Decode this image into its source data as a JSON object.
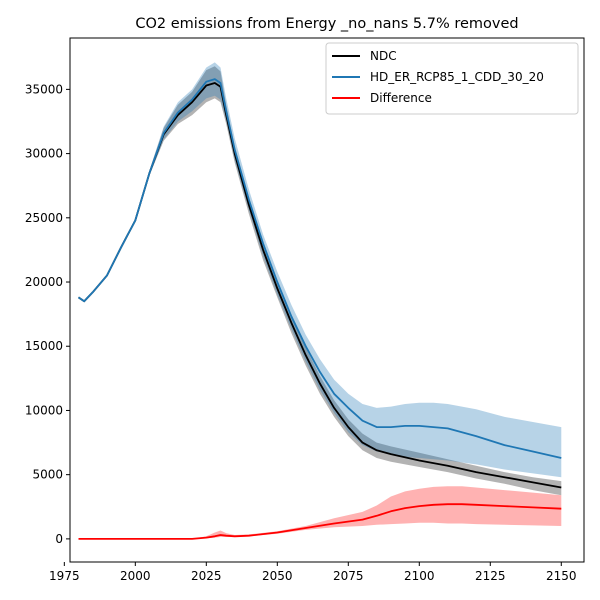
{
  "chart_data": {
    "type": "line",
    "title": "CO2 emissions from Energy _no_nans 5.7% removed",
    "xlabel": "",
    "ylabel": "",
    "xlim": [
      1977,
      2158
    ],
    "ylim": [
      -1800,
      39000
    ],
    "xticks": [
      1975,
      2000,
      2025,
      2050,
      2075,
      2100,
      2125,
      2150
    ],
    "yticks": [
      0,
      5000,
      10000,
      15000,
      20000,
      25000,
      30000,
      35000
    ],
    "legend_position": "top-right",
    "series": [
      {
        "name": "NDC",
        "color": "#000000",
        "band_color": "#808080",
        "band_opacity": 0.6,
        "x": [
          1980,
          1982,
          1985,
          1990,
          1995,
          2000,
          2005,
          2010,
          2015,
          2020,
          2025,
          2028,
          2030,
          2032,
          2035,
          2040,
          2045,
          2050,
          2055,
          2060,
          2065,
          2070,
          2075,
          2080,
          2085,
          2090,
          2100,
          2110,
          2120,
          2130,
          2140,
          2150
        ],
        "values": [
          18800,
          18500,
          19200,
          20500,
          22700,
          24800,
          28500,
          31500,
          33000,
          34000,
          35300,
          35500,
          35200,
          33000,
          30000,
          26000,
          22500,
          19500,
          16800,
          14300,
          12100,
          10200,
          8700,
          7500,
          6900,
          6600,
          6100,
          5700,
          5200,
          4800,
          4400,
          4000
        ],
        "lower": [
          18800,
          18500,
          19200,
          20500,
          22700,
          24800,
          28300,
          31000,
          32300,
          33000,
          34000,
          34300,
          34000,
          32300,
          29300,
          25300,
          21700,
          18800,
          16000,
          13500,
          11300,
          9500,
          8000,
          6900,
          6300,
          6000,
          5600,
          5200,
          4700,
          4300,
          3800,
          3400
        ],
        "upper": [
          18800,
          18500,
          19200,
          20500,
          22700,
          24800,
          28700,
          32000,
          33800,
          34800,
          36500,
          36800,
          36400,
          33800,
          30600,
          26600,
          23100,
          20100,
          17400,
          14900,
          12700,
          10800,
          9300,
          8200,
          7500,
          7200,
          6700,
          6200,
          5700,
          5200,
          4800,
          4500
        ]
      },
      {
        "name": "HD_ER_RCP85_1_CDD_30_20",
        "color": "#1f77b4",
        "band_color": "#1f77b4",
        "band_opacity": 0.32,
        "x": [
          1980,
          1982,
          1985,
          1990,
          1995,
          2000,
          2005,
          2010,
          2015,
          2020,
          2025,
          2028,
          2030,
          2032,
          2035,
          2040,
          2045,
          2050,
          2055,
          2060,
          2065,
          2070,
          2075,
          2080,
          2085,
          2090,
          2095,
          2100,
          2105,
          2110,
          2120,
          2130,
          2140,
          2150
        ],
        "values": [
          18800,
          18500,
          19200,
          20500,
          22700,
          24800,
          28500,
          31600,
          33200,
          34200,
          35600,
          35800,
          35500,
          33300,
          30300,
          26400,
          23000,
          20000,
          17300,
          15000,
          13000,
          11300,
          10200,
          9200,
          8700,
          8700,
          8800,
          8800,
          8700,
          8600,
          8000,
          7300,
          6800,
          6300
        ],
        "lower": [
          18800,
          18500,
          19200,
          20500,
          22700,
          24800,
          28300,
          31100,
          32500,
          33300,
          34300,
          34500,
          34200,
          32600,
          29500,
          25600,
          22000,
          19000,
          16300,
          13800,
          11600,
          9800,
          8300,
          7300,
          6800,
          6600,
          6400,
          6300,
          6200,
          6100,
          5800,
          5400,
          5100,
          4800
        ],
        "upper": [
          18800,
          18500,
          19200,
          20500,
          22700,
          24800,
          28700,
          32100,
          34000,
          35000,
          36700,
          37100,
          36700,
          34300,
          31200,
          27200,
          23700,
          20800,
          18200,
          15900,
          14000,
          12400,
          11300,
          10500,
          10200,
          10300,
          10500,
          10600,
          10600,
          10500,
          10100,
          9500,
          9100,
          8700
        ]
      },
      {
        "name": "Difference",
        "color": "#ff0000",
        "band_color": "#ff0000",
        "band_opacity": 0.3,
        "x": [
          1980,
          2000,
          2020,
          2025,
          2028,
          2030,
          2032,
          2035,
          2040,
          2050,
          2060,
          2070,
          2080,
          2085,
          2090,
          2095,
          2100,
          2105,
          2110,
          2115,
          2120,
          2130,
          2140,
          2150
        ],
        "values": [
          0,
          0,
          0,
          100,
          200,
          300,
          250,
          200,
          250,
          500,
          850,
          1200,
          1500,
          1800,
          2150,
          2400,
          2550,
          2650,
          2700,
          2700,
          2650,
          2550,
          2450,
          2350
        ],
        "lower": [
          0,
          0,
          0,
          50,
          100,
          150,
          150,
          150,
          200,
          400,
          700,
          900,
          1000,
          1100,
          1150,
          1200,
          1250,
          1250,
          1200,
          1200,
          1150,
          1100,
          1050,
          1000
        ],
        "upper": [
          0,
          0,
          0,
          200,
          500,
          650,
          450,
          300,
          350,
          600,
          1000,
          1600,
          2100,
          2600,
          3300,
          3700,
          3900,
          4050,
          4100,
          4100,
          4000,
          3800,
          3600,
          3400
        ]
      }
    ]
  }
}
